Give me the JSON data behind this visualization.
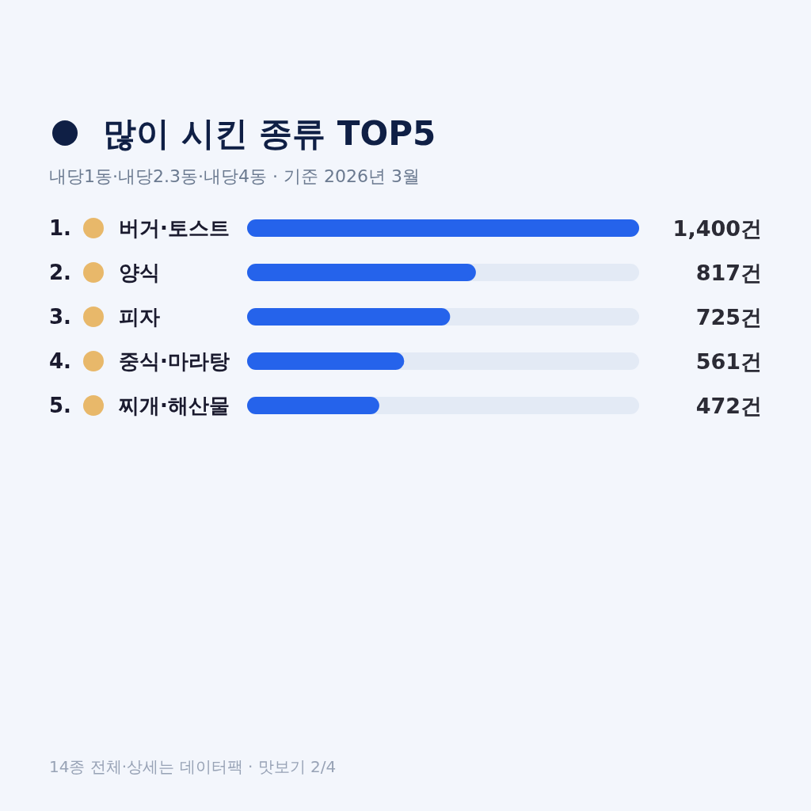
{
  "chart_data": {
    "type": "bar",
    "orientation": "horizontal",
    "title": "많이 시킨 종류 TOP5",
    "subtitle": "내당1동·내당2.3동·내당4동 · 기준 2026년 3월",
    "categories": [
      "1. 버거·토스트",
      "2. 양식",
      "3. 피자",
      "4. 중식·마라탕",
      "5. 찌개·해산물"
    ],
    "values": [
      1400,
      817,
      725,
      561,
      472
    ],
    "value_labels": [
      "1,400건",
      "817건",
      "725건",
      "561건",
      "472건"
    ],
    "color": "#2563eb",
    "annotations": [
      "14종 전체·상세는 데이터팩 · 맛보기 2/4"
    ]
  }
}
